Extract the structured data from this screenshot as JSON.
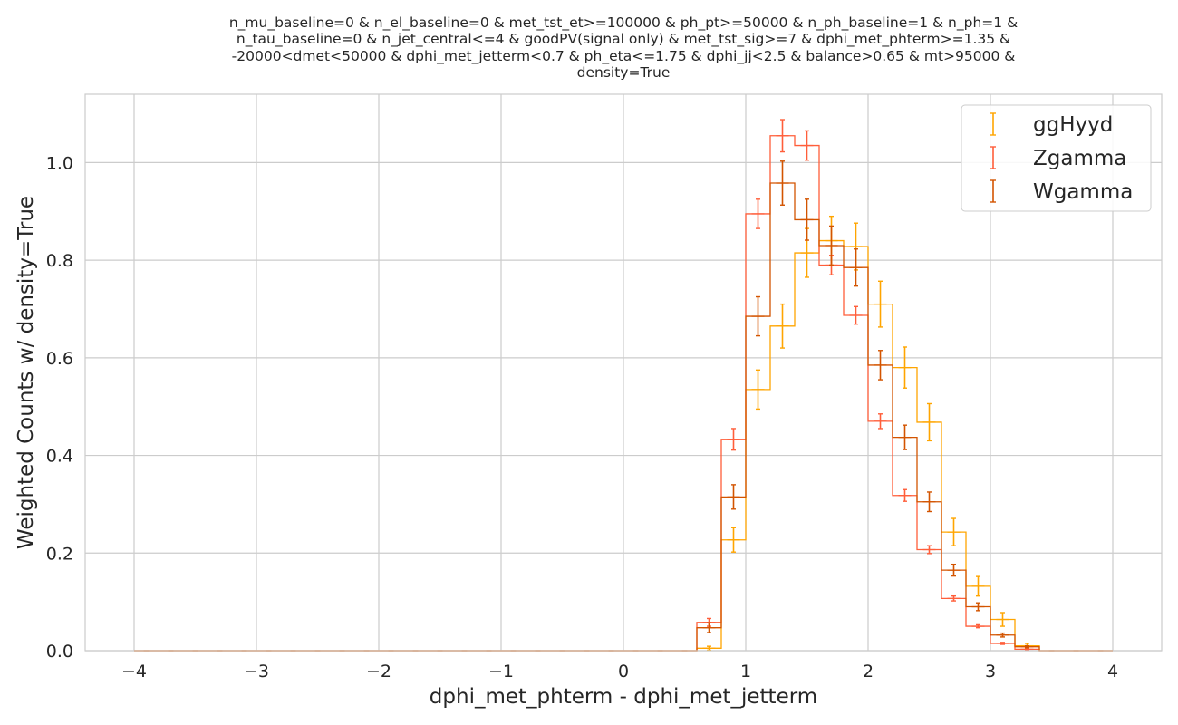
{
  "chart_data": {
    "type": "histogram-step",
    "title_lines": [
      "n_mu_baseline=0 & n_el_baseline=0 & met_tst_et>=100000 & ph_pt>=50000 & n_ph_baseline=1 & n_ph=1 &",
      "n_tau_baseline=0 & n_jet_central<=4 & goodPV(signal only) & met_tst_sig>=7 & dphi_met_phterm>=1.35 &",
      "-20000<dmet<50000 & dphi_met_jetterm<0.7 & ph_eta<=1.75 & dphi_jj<2.5 & balance>0.65 & mt>95000 &",
      "density=True"
    ],
    "xlabel": "dphi_met_phterm - dphi_met_jetterm",
    "ylabel": "Weighted Counts w/ density=True",
    "xlim": [
      -4.4,
      4.4
    ],
    "ylim": [
      0,
      1.14
    ],
    "xticks": [
      -4,
      -3,
      -2,
      -1,
      0,
      1,
      2,
      3,
      4
    ],
    "xtick_labels": [
      "−4",
      "−3",
      "−2",
      "−1",
      "0",
      "1",
      "2",
      "3",
      "4"
    ],
    "yticks": [
      0.0,
      0.2,
      0.4,
      0.6,
      0.8,
      1.0
    ],
    "ytick_labels": [
      "0.0",
      "0.2",
      "0.4",
      "0.6",
      "0.8",
      "1.0"
    ],
    "grid": true,
    "legend_position": "top-right",
    "bin_edges": [
      -4.0,
      -3.8,
      -3.6,
      -3.4,
      -3.2,
      -3.0,
      -2.8,
      -2.6,
      -2.4,
      -2.2,
      -2.0,
      -1.8,
      -1.6,
      -1.4,
      -1.2,
      -1.0,
      -0.8,
      -0.6,
      -0.4,
      -0.2,
      0.0,
      0.2,
      0.4,
      0.6,
      0.8,
      1.0,
      1.2,
      1.4,
      1.6,
      1.8,
      2.0,
      2.2,
      2.4,
      2.6,
      2.8,
      3.0,
      3.2,
      3.4,
      3.6,
      3.8,
      4.0
    ],
    "series": [
      {
        "name": "ggHyyd",
        "color": "#ffa500",
        "values": [
          0,
          0,
          0,
          0,
          0,
          0,
          0,
          0,
          0,
          0,
          0,
          0,
          0,
          0,
          0,
          0,
          0,
          0,
          0,
          0,
          0,
          0,
          0,
          0.005,
          0.227,
          0.535,
          0.665,
          0.815,
          0.84,
          0.828,
          0.71,
          0.58,
          0.468,
          0.243,
          0.132,
          0.064,
          0.01,
          0,
          0,
          0,
          0
        ],
        "errors": [
          0,
          0,
          0,
          0,
          0,
          0,
          0,
          0,
          0,
          0,
          0,
          0,
          0,
          0,
          0,
          0,
          0,
          0,
          0,
          0,
          0,
          0,
          0,
          0.004,
          0.025,
          0.04,
          0.045,
          0.05,
          0.05,
          0.048,
          0.047,
          0.042,
          0.038,
          0.028,
          0.02,
          0.014,
          0.005,
          0,
          0,
          0,
          0
        ]
      },
      {
        "name": "Zgamma",
        "color": "#ff5e3a",
        "values": [
          0,
          0,
          0,
          0,
          0,
          0,
          0,
          0,
          0,
          0,
          0,
          0,
          0,
          0,
          0,
          0,
          0,
          0,
          0,
          0,
          0,
          0,
          0,
          0.058,
          0.433,
          0.895,
          1.055,
          1.035,
          0.79,
          0.687,
          0.47,
          0.318,
          0.207,
          0.107,
          0.05,
          0.015,
          0.003,
          0,
          0,
          0,
          0
        ],
        "errors": [
          0,
          0,
          0,
          0,
          0,
          0,
          0,
          0,
          0,
          0,
          0,
          0,
          0,
          0,
          0,
          0,
          0,
          0,
          0,
          0,
          0,
          0,
          0,
          0.008,
          0.022,
          0.03,
          0.033,
          0.03,
          0.02,
          0.018,
          0.015,
          0.012,
          0.008,
          0.005,
          0.003,
          0.002,
          0.001,
          0,
          0,
          0,
          0
        ]
      },
      {
        "name": "Wgamma",
        "color": "#d35400",
        "values": [
          0,
          0,
          0,
          0,
          0,
          0,
          0,
          0,
          0,
          0,
          0,
          0,
          0,
          0,
          0,
          0,
          0,
          0,
          0,
          0,
          0,
          0,
          0,
          0.047,
          0.315,
          0.685,
          0.958,
          0.883,
          0.83,
          0.785,
          0.585,
          0.437,
          0.305,
          0.165,
          0.09,
          0.032,
          0.008,
          0,
          0,
          0,
          0
        ],
        "errors": [
          0,
          0,
          0,
          0,
          0,
          0,
          0,
          0,
          0,
          0,
          0,
          0,
          0,
          0,
          0,
          0,
          0,
          0,
          0,
          0,
          0,
          0,
          0,
          0.01,
          0.025,
          0.04,
          0.045,
          0.042,
          0.04,
          0.038,
          0.03,
          0.025,
          0.02,
          0.012,
          0.008,
          0.004,
          0.002,
          0,
          0,
          0,
          0
        ]
      }
    ]
  }
}
